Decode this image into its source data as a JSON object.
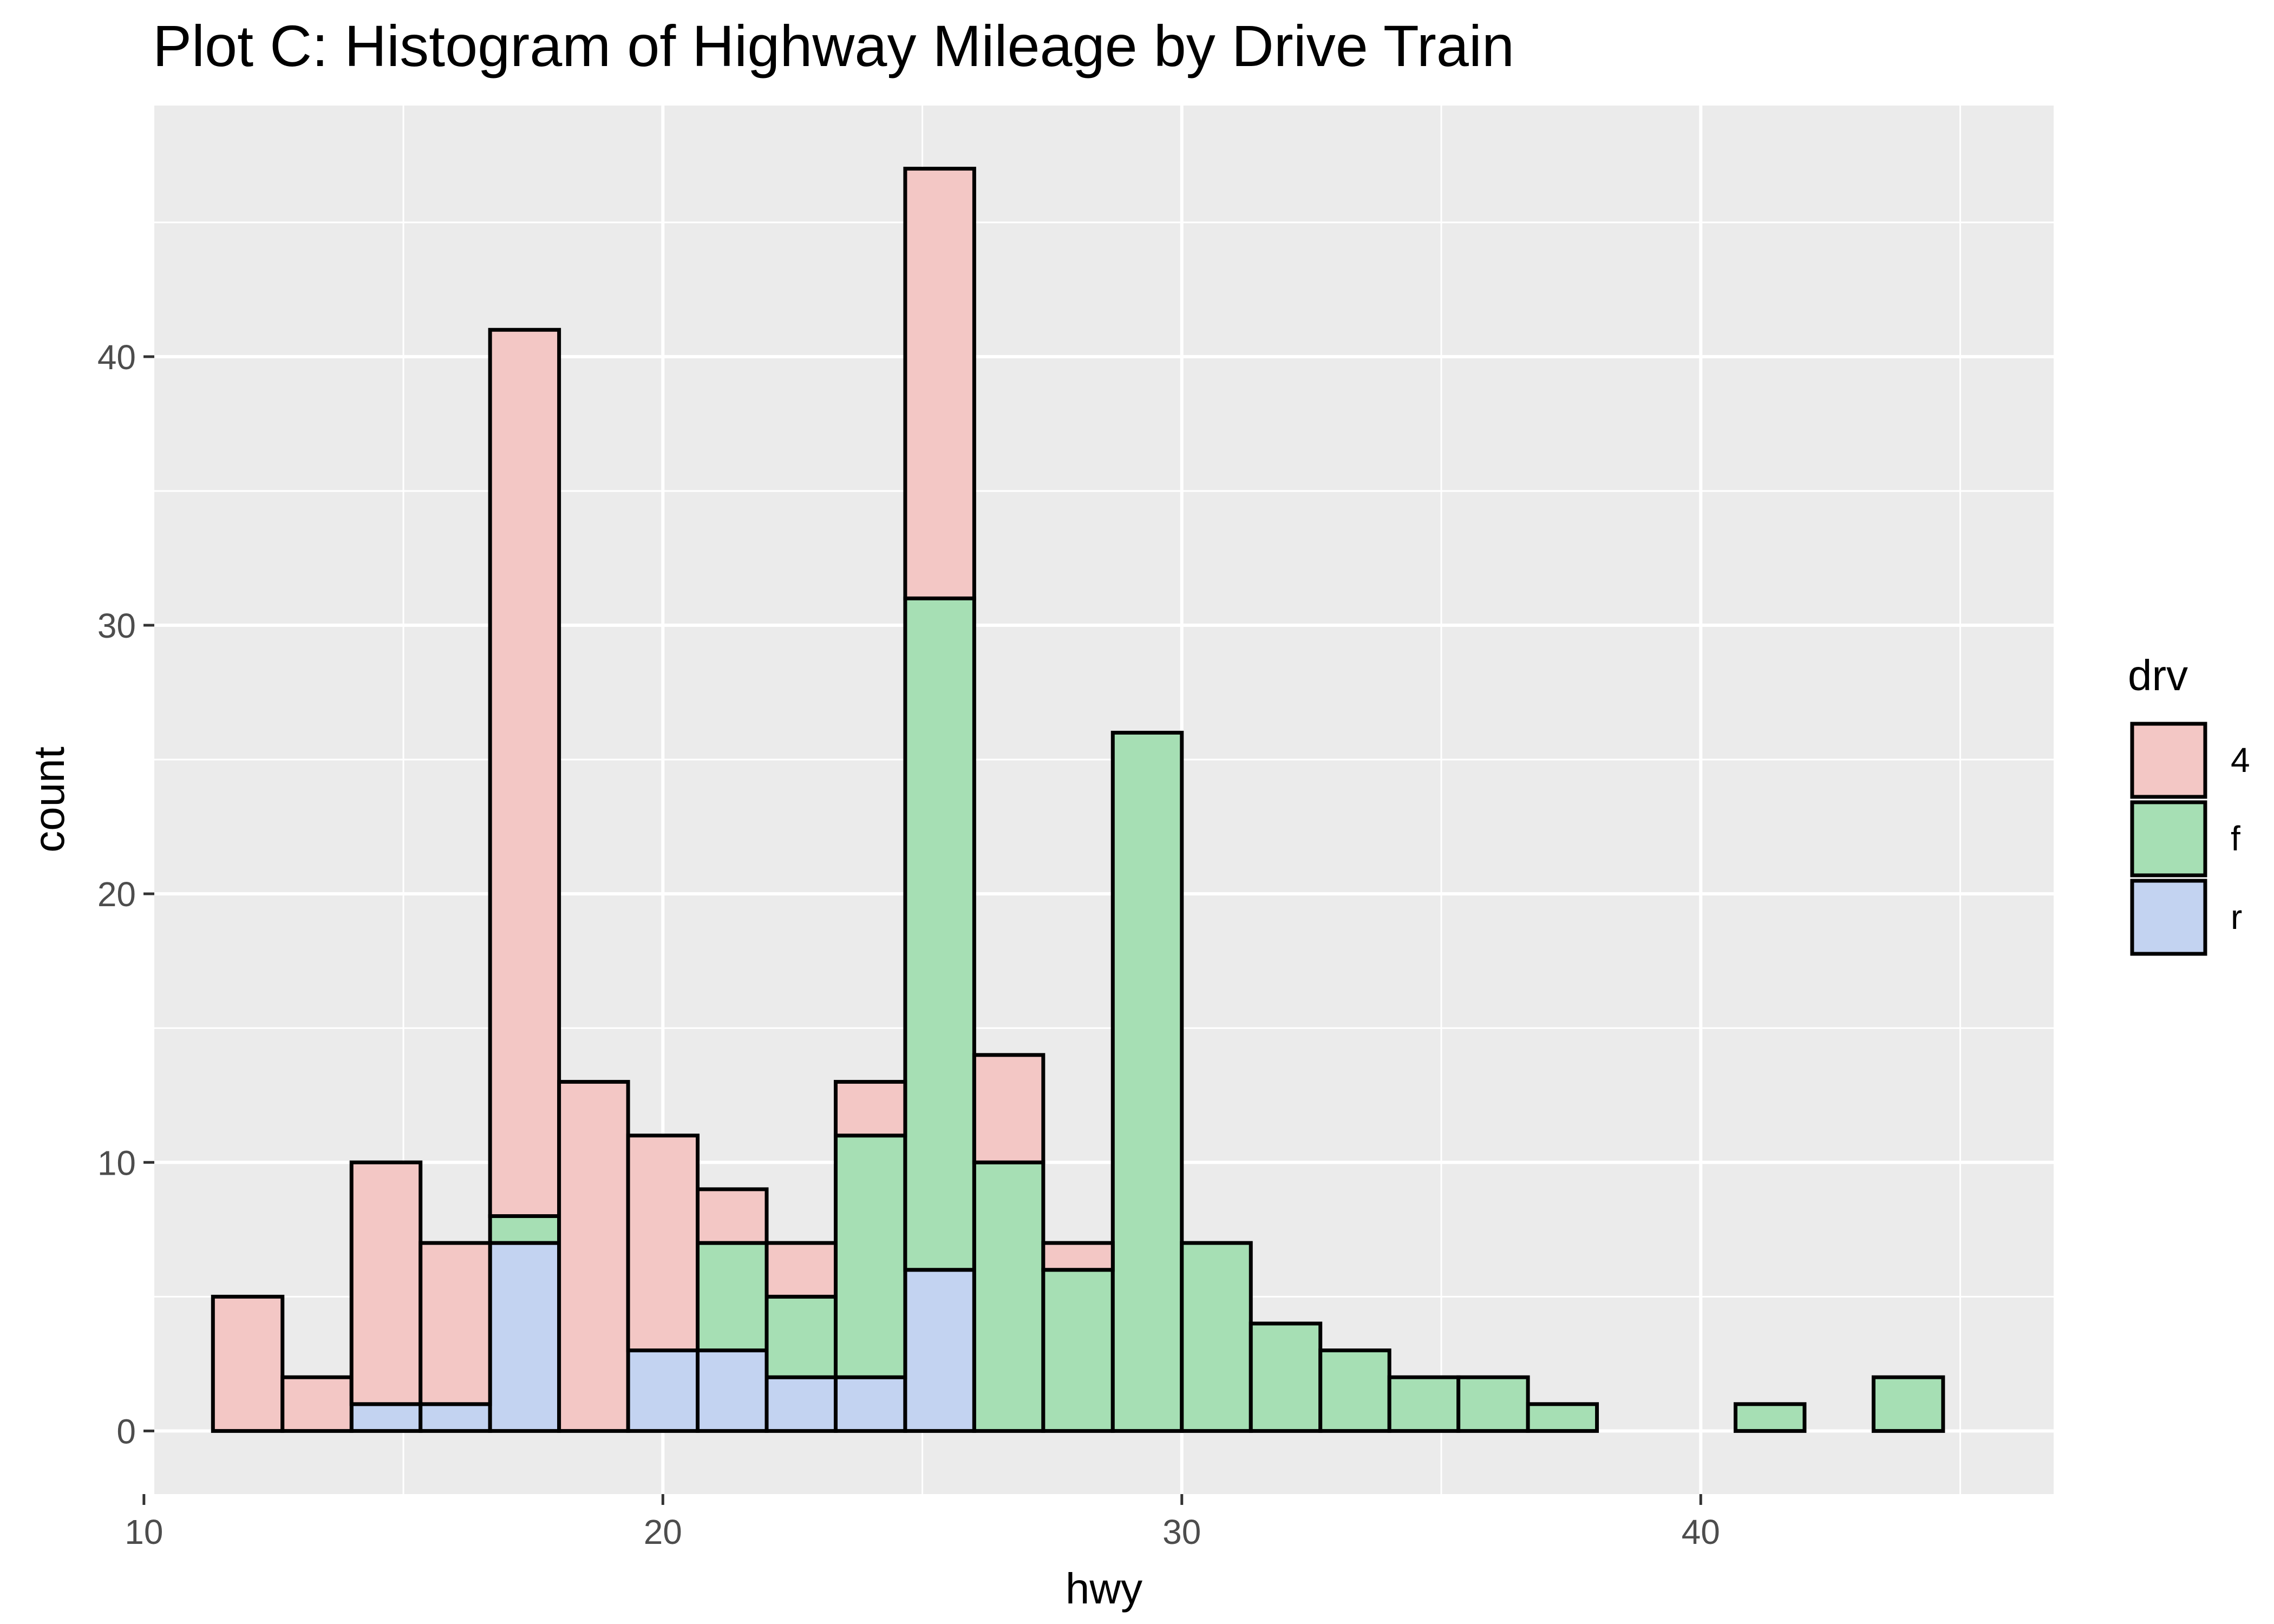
{
  "chart_data": {
    "type": "bar",
    "subtype": "stacked-histogram",
    "title": "Plot C: Histogram of Highway Mileage by Drive Train",
    "xlabel": "hwy",
    "ylabel": "count",
    "xlim": [
      10.2,
      46.8
    ],
    "ylim": [
      -2.35,
      49.35
    ],
    "x_ticks": [
      10,
      20,
      30,
      40
    ],
    "y_ticks": [
      0,
      10,
      20,
      30,
      40
    ],
    "grid": true,
    "legend": {
      "title": "drv",
      "position": "right",
      "items": [
        {
          "label": "4",
          "color": "#F3C7C5"
        },
        {
          "label": "f",
          "color": "#A6DFB4"
        },
        {
          "label": "r",
          "color": "#C3D3F1"
        }
      ]
    },
    "bin_edges": [
      11.33,
      12.67,
      14.0,
      15.33,
      16.67,
      18.0,
      19.33,
      20.67,
      22.0,
      23.33,
      24.67,
      26.0,
      27.33,
      28.67,
      30.0,
      31.33,
      32.67,
      34.0,
      35.33,
      36.67,
      38.0,
      39.33,
      40.67,
      42.0,
      43.33,
      44.67
    ],
    "series": [
      {
        "name": "r",
        "color": "#C3D3F1",
        "values": [
          0,
          0,
          1,
          1,
          7,
          0,
          3,
          3,
          2,
          2,
          6,
          0,
          0,
          0,
          0,
          0,
          0,
          0,
          0,
          0,
          0,
          0,
          0,
          0,
          0
        ]
      },
      {
        "name": "f",
        "color": "#A6DFB4",
        "values": [
          0,
          0,
          0,
          0,
          1,
          0,
          0,
          4,
          3,
          9,
          25,
          10,
          6,
          26,
          7,
          4,
          3,
          2,
          2,
          1,
          0,
          0,
          1,
          0,
          2
        ]
      },
      {
        "name": "4",
        "color": "#F3C7C5",
        "values": [
          5,
          2,
          9,
          6,
          33,
          13,
          8,
          2,
          2,
          2,
          16,
          4,
          1,
          0,
          0,
          0,
          0,
          0,
          0,
          0,
          0,
          0,
          0,
          0,
          0
        ]
      }
    ],
    "colors": {
      "panel_background": "#EBEBEB",
      "grid": "#FFFFFF",
      "bar_outline": "#000000"
    }
  }
}
